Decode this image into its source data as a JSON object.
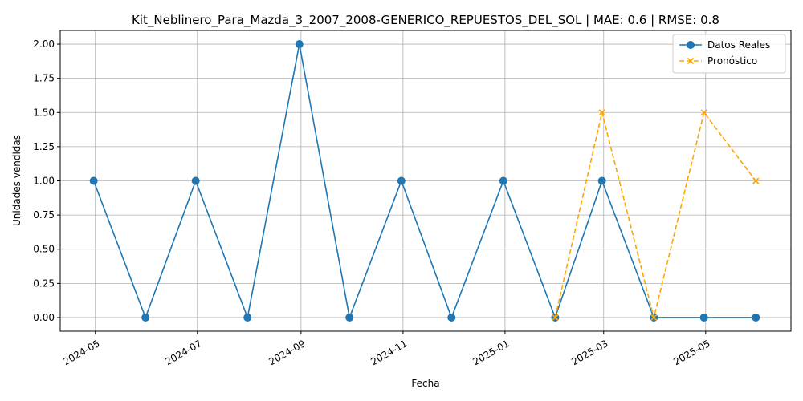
{
  "chart_data": {
    "type": "line",
    "title": "Kit_Neblinero_Para_Mazda_3_2007_2008-GENERICO_REPUESTOS_DEL_SOL | MAE: 0.6 | RMSE: 0.8",
    "xlabel": "Fecha",
    "ylabel": "Unidades vendidas",
    "grid": true,
    "legend_position": "top-right",
    "x_ticks": [
      "2024-05",
      "2024-07",
      "2024-09",
      "2024-11",
      "2025-01",
      "2025-03",
      "2025-05"
    ],
    "y_ticks": [
      "0.00",
      "0.25",
      "0.50",
      "0.75",
      "1.00",
      "1.25",
      "1.50",
      "1.75",
      "2.00"
    ],
    "xlim": [
      "2024-04-10",
      "2025-06-21"
    ],
    "ylim": [
      -0.1,
      2.1
    ],
    "series": [
      {
        "name": "Datos Reales",
        "color": "#1f77b4",
        "marker": "circle",
        "line_style": "solid",
        "points": [
          {
            "x": "2024-04-30",
            "y": 1
          },
          {
            "x": "2024-05-31",
            "y": 0
          },
          {
            "x": "2024-06-30",
            "y": 1
          },
          {
            "x": "2024-07-31",
            "y": 0
          },
          {
            "x": "2024-08-31",
            "y": 2
          },
          {
            "x": "2024-09-30",
            "y": 0
          },
          {
            "x": "2024-10-31",
            "y": 1
          },
          {
            "x": "2024-11-30",
            "y": 0
          },
          {
            "x": "2024-12-31",
            "y": 1
          },
          {
            "x": "2025-01-31",
            "y": 0
          },
          {
            "x": "2025-02-28",
            "y": 1
          },
          {
            "x": "2025-03-31",
            "y": 0
          },
          {
            "x": "2025-04-30",
            "y": 0
          },
          {
            "x": "2025-05-31",
            "y": 0
          }
        ]
      },
      {
        "name": "Pronóstico",
        "color": "#ffa500",
        "marker": "x",
        "line_style": "dashed",
        "points": [
          {
            "x": "2025-01-31",
            "y": 0
          },
          {
            "x": "2025-02-28",
            "y": 1.5
          },
          {
            "x": "2025-03-31",
            "y": 0
          },
          {
            "x": "2025-04-30",
            "y": 1.5
          },
          {
            "x": "2025-05-31",
            "y": 1
          }
        ]
      }
    ]
  }
}
